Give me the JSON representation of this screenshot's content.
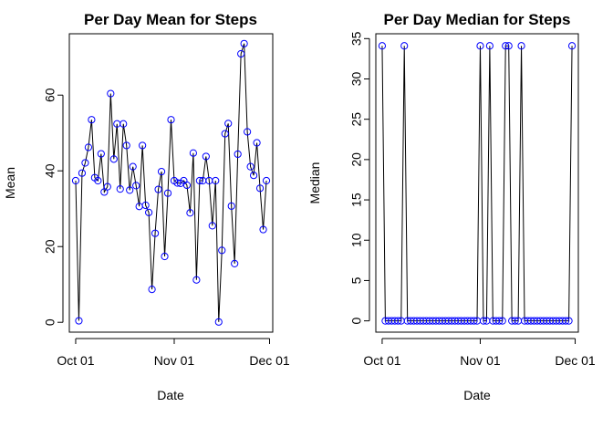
{
  "chart_data": [
    {
      "type": "line",
      "title": "Per Day Mean for Steps",
      "xlabel": "Date",
      "ylabel": "Mean",
      "x_tick_labels": [
        "Oct 01",
        "Nov 01",
        "Dec 01"
      ],
      "x_tick_dates": [
        "2012-10-01",
        "2012-11-01",
        "2012-12-01"
      ],
      "y_ticks": [
        0,
        20,
        40,
        60
      ],
      "xlim": [
        "2012-09-29",
        "2012-12-02"
      ],
      "ylim": [
        -2.6,
        76.2
      ],
      "grid": false,
      "series": [
        {
          "marker_color": "#0000ff",
          "line_color": "#000000",
          "x": [
            "2012-10-01",
            "2012-10-02",
            "2012-10-03",
            "2012-10-04",
            "2012-10-05",
            "2012-10-06",
            "2012-10-07",
            "2012-10-08",
            "2012-10-09",
            "2012-10-10",
            "2012-10-11",
            "2012-10-12",
            "2012-10-13",
            "2012-10-14",
            "2012-10-15",
            "2012-10-16",
            "2012-10-17",
            "2012-10-18",
            "2012-10-19",
            "2012-10-20",
            "2012-10-21",
            "2012-10-22",
            "2012-10-23",
            "2012-10-24",
            "2012-10-25",
            "2012-10-26",
            "2012-10-27",
            "2012-10-28",
            "2012-10-29",
            "2012-10-30",
            "2012-10-31",
            "2012-11-01",
            "2012-11-02",
            "2012-11-03",
            "2012-11-04",
            "2012-11-05",
            "2012-11-06",
            "2012-11-07",
            "2012-11-08",
            "2012-11-09",
            "2012-11-10",
            "2012-11-11",
            "2012-11-12",
            "2012-11-13",
            "2012-11-14",
            "2012-11-15",
            "2012-11-16",
            "2012-11-17",
            "2012-11-18",
            "2012-11-19",
            "2012-11-20",
            "2012-11-21",
            "2012-11-22",
            "2012-11-23",
            "2012-11-24",
            "2012-11-25",
            "2012-11-26",
            "2012-11-27",
            "2012-11-28",
            "2012-11-29",
            "2012-11-30"
          ],
          "values": [
            37.4,
            0.4,
            39.4,
            42.1,
            46.2,
            53.5,
            38.2,
            37.4,
            44.5,
            34.4,
            35.8,
            60.4,
            43.1,
            52.4,
            35.2,
            52.4,
            46.7,
            34.9,
            41.1,
            36.1,
            30.6,
            46.7,
            30.9,
            29.0,
            8.7,
            23.5,
            35.1,
            39.8,
            17.4,
            34.1,
            53.5,
            37.4,
            36.8,
            36.7,
            37.4,
            36.2,
            28.9,
            44.7,
            11.2,
            37.4,
            37.4,
            43.8,
            37.4,
            25.5,
            37.4,
            0.1,
            19.0,
            49.8,
            52.5,
            30.7,
            15.5,
            44.4,
            70.9,
            73.6,
            50.3,
            41.1,
            38.8,
            47.4,
            35.4,
            24.5,
            37.4
          ]
        }
      ]
    },
    {
      "type": "line",
      "title": "Per Day Median for Steps",
      "xlabel": "Date",
      "ylabel": "Median",
      "x_tick_labels": [
        "Oct 01",
        "Nov 01",
        "Dec 01"
      ],
      "x_tick_dates": [
        "2012-10-01",
        "2012-11-01",
        "2012-12-01"
      ],
      "y_ticks": [
        0,
        5,
        10,
        15,
        20,
        25,
        30,
        35
      ],
      "xlim": [
        "2012-09-29",
        "2012-12-02"
      ],
      "ylim": [
        -1.4,
        35.6
      ],
      "grid": false,
      "series": [
        {
          "marker_color": "#0000ff",
          "line_color": "#000000",
          "x": [
            "2012-10-01",
            "2012-10-02",
            "2012-10-03",
            "2012-10-04",
            "2012-10-05",
            "2012-10-06",
            "2012-10-07",
            "2012-10-08",
            "2012-10-09",
            "2012-10-10",
            "2012-10-11",
            "2012-10-12",
            "2012-10-13",
            "2012-10-14",
            "2012-10-15",
            "2012-10-16",
            "2012-10-17",
            "2012-10-18",
            "2012-10-19",
            "2012-10-20",
            "2012-10-21",
            "2012-10-22",
            "2012-10-23",
            "2012-10-24",
            "2012-10-25",
            "2012-10-26",
            "2012-10-27",
            "2012-10-28",
            "2012-10-29",
            "2012-10-30",
            "2012-10-31",
            "2012-11-01",
            "2012-11-02",
            "2012-11-03",
            "2012-11-04",
            "2012-11-05",
            "2012-11-06",
            "2012-11-07",
            "2012-11-08",
            "2012-11-09",
            "2012-11-10",
            "2012-11-11",
            "2012-11-12",
            "2012-11-13",
            "2012-11-14",
            "2012-11-15",
            "2012-11-16",
            "2012-11-17",
            "2012-11-18",
            "2012-11-19",
            "2012-11-20",
            "2012-11-21",
            "2012-11-22",
            "2012-11-23",
            "2012-11-24",
            "2012-11-25",
            "2012-11-26",
            "2012-11-27",
            "2012-11-28",
            "2012-11-29",
            "2012-11-30"
          ],
          "values": [
            34.1,
            0,
            0,
            0,
            0,
            0,
            0,
            34.1,
            0,
            0,
            0,
            0,
            0,
            0,
            0,
            0,
            0,
            0,
            0,
            0,
            0,
            0,
            0,
            0,
            0,
            0,
            0,
            0,
            0,
            0,
            0,
            34.1,
            0,
            0,
            34.1,
            0,
            0,
            0,
            0,
            34.1,
            34.1,
            0,
            0,
            0,
            34.1,
            0,
            0,
            0,
            0,
            0,
            0,
            0,
            0,
            0,
            0,
            0,
            0,
            0,
            0,
            0,
            34.1
          ]
        }
      ]
    }
  ]
}
